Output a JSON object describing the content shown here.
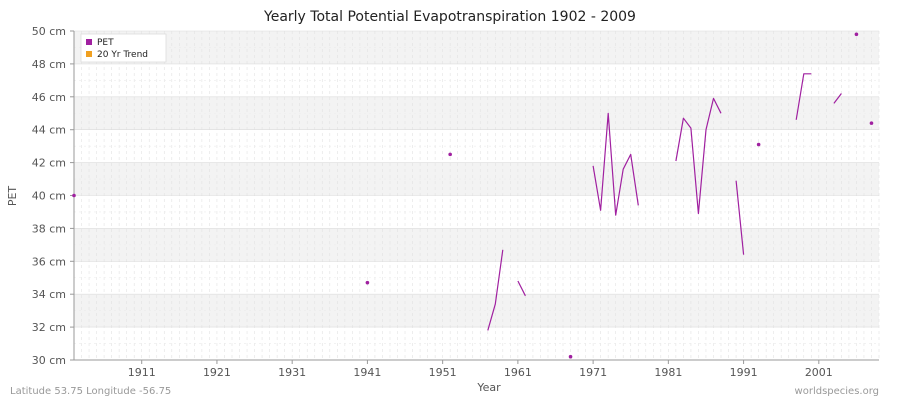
{
  "chart_data": {
    "type": "line",
    "title": "Yearly Total Potential Evapotranspiration 1902 - 2009",
    "xlabel": "Year",
    "ylabel": "PET",
    "x_ticks": [
      1911,
      1921,
      1931,
      1941,
      1951,
      1961,
      1971,
      1981,
      1991,
      2001
    ],
    "y_ticks": [
      "30 cm",
      "32 cm",
      "34 cm",
      "36 cm",
      "38 cm",
      "40 cm",
      "42 cm",
      "44 cm",
      "46 cm",
      "48 cm",
      "50 cm"
    ],
    "xlim": [
      1902,
      2009
    ],
    "ylim": [
      30,
      50
    ],
    "grid": true,
    "legend_position": "top-left",
    "series": [
      {
        "name": "PET",
        "color": "#a020a0",
        "points": [
          [
            1902,
            40.0
          ],
          [
            1941,
            34.7
          ],
          [
            1952,
            42.5
          ],
          [
            1957,
            31.8
          ],
          [
            1958,
            33.4
          ],
          [
            1959,
            36.7
          ],
          [
            1961,
            34.8
          ],
          [
            1962,
            33.9
          ],
          [
            1968,
            30.2
          ],
          [
            1971,
            41.8
          ],
          [
            1972,
            39.1
          ],
          [
            1973,
            45.0
          ],
          [
            1974,
            38.8
          ],
          [
            1975,
            41.6
          ],
          [
            1976,
            42.5
          ],
          [
            1977,
            39.4
          ],
          [
            1982,
            42.1
          ],
          [
            1983,
            44.7
          ],
          [
            1984,
            44.1
          ],
          [
            1985,
            38.9
          ],
          [
            1986,
            44.0
          ],
          [
            1987,
            45.9
          ],
          [
            1988,
            45.0
          ],
          [
            1990,
            40.9
          ],
          [
            1991,
            36.4
          ],
          [
            1993,
            43.1
          ],
          [
            1998,
            44.6
          ],
          [
            1999,
            47.4
          ],
          [
            2000,
            47.4
          ],
          [
            2003,
            45.6
          ],
          [
            2004,
            46.2
          ],
          [
            2006,
            49.8
          ],
          [
            2008,
            44.4
          ]
        ],
        "segments": [
          [
            1957,
            1958,
            1959
          ],
          [
            1961,
            1962
          ],
          [
            1971,
            1972,
            1973,
            1974,
            1975,
            1976,
            1977
          ],
          [
            1982,
            1983,
            1984,
            1985,
            1986,
            1987,
            1988
          ],
          [
            1990,
            1991
          ],
          [
            1998,
            1999,
            2000
          ],
          [
            2003,
            2004
          ]
        ],
        "isolated": [
          1902,
          1941,
          1952,
          1968,
          1993,
          2006,
          2008
        ]
      },
      {
        "name": "20 Yr Trend",
        "color": "#f0a020",
        "points": []
      }
    ],
    "footer_left": "Latitude 53.75 Longitude -56.75",
    "footer_right": "worldspecies.org"
  }
}
